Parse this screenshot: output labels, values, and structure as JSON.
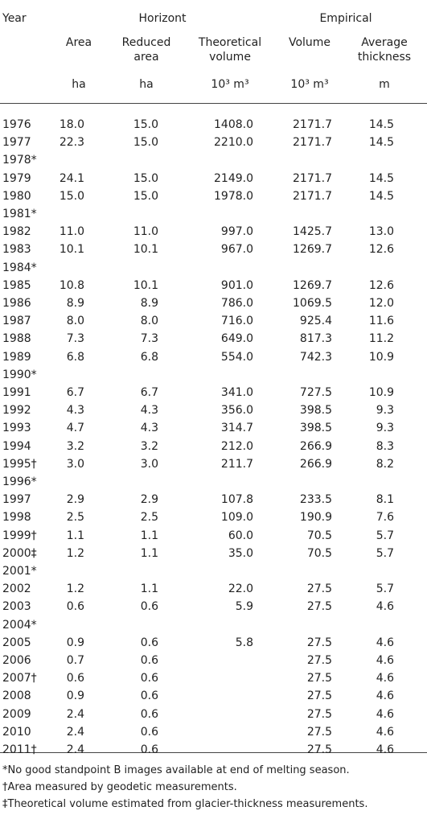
{
  "table": {
    "group_headers": [
      "Horizont",
      "Empirical"
    ],
    "headers": [
      "Year",
      "Area",
      "Reduced area",
      "Theoretical volume",
      "Volume",
      "Average thickness"
    ],
    "units": [
      "ha",
      "ha",
      "10³ m³",
      "10³ m³",
      "m"
    ],
    "rows": [
      [
        "1976",
        "18.0",
        "15.0",
        "1408.0",
        "2171.7",
        "14.5"
      ],
      [
        "1977",
        "22.3",
        "15.0",
        "2210.0",
        "2171.7",
        "14.5"
      ],
      [
        "1978*",
        null,
        null,
        null,
        null,
        null
      ],
      [
        "1979",
        "24.1",
        "15.0",
        "2149.0",
        "2171.7",
        "14.5"
      ],
      [
        "1980",
        "15.0",
        "15.0",
        "1978.0",
        "2171.7",
        "14.5"
      ],
      [
        "1981*",
        null,
        null,
        null,
        null,
        null
      ],
      [
        "1982",
        "11.0",
        "11.0",
        "997.0",
        "1425.7",
        "13.0"
      ],
      [
        "1983",
        "10.1",
        "10.1",
        "967.0",
        "1269.7",
        "12.6"
      ],
      [
        "1984*",
        null,
        null,
        null,
        null,
        null
      ],
      [
        "1985",
        "10.8",
        "10.1",
        "901.0",
        "1269.7",
        "12.6"
      ],
      [
        "1986",
        "8.9",
        "8.9",
        "786.0",
        "1069.5",
        "12.0"
      ],
      [
        "1987",
        "8.0",
        "8.0",
        "716.0",
        "925.4",
        "11.6"
      ],
      [
        "1988",
        "7.3",
        "7.3",
        "649.0",
        "817.3",
        "11.2"
      ],
      [
        "1989",
        "6.8",
        "6.8",
        "554.0",
        "742.3",
        "10.9"
      ],
      [
        "1990*",
        null,
        null,
        null,
        null,
        null
      ],
      [
        "1991",
        "6.7",
        "6.7",
        "341.0",
        "727.5",
        "10.9"
      ],
      [
        "1992",
        "4.3",
        "4.3",
        "356.0",
        "398.5",
        "9.3"
      ],
      [
        "1993",
        "4.7",
        "4.3",
        "314.7",
        "398.5",
        "9.3"
      ],
      [
        "1994",
        "3.2",
        "3.2",
        "212.0",
        "266.9",
        "8.3"
      ],
      [
        "1995†",
        "3.0",
        "3.0",
        "211.7",
        "266.9",
        "8.2"
      ],
      [
        "1996*",
        null,
        null,
        null,
        null,
        null
      ],
      [
        "1997",
        "2.9",
        "2.9",
        "107.8",
        "233.5",
        "8.1"
      ],
      [
        "1998",
        "2.5",
        "2.5",
        "109.0",
        "190.9",
        "7.6"
      ],
      [
        "1999†",
        "1.1",
        "1.1",
        "60.0",
        "70.5",
        "5.7"
      ],
      [
        "2000‡",
        "1.2",
        "1.1",
        "35.0",
        "70.5",
        "5.7"
      ],
      [
        "2001*",
        null,
        null,
        null,
        null,
        null
      ],
      [
        "2002",
        "1.2",
        "1.1",
        "22.0",
        "27.5",
        "5.7"
      ],
      [
        "2003",
        "0.6",
        "0.6",
        "5.9",
        "27.5",
        "4.6"
      ],
      [
        "2004*",
        null,
        null,
        null,
        null,
        null
      ],
      [
        "2005",
        "0.9",
        "0.6",
        "5.8",
        "27.5",
        "4.6"
      ],
      [
        "2006",
        "0.7",
        "0.6",
        null,
        "27.5",
        "4.6"
      ],
      [
        "2007†",
        "0.6",
        "0.6",
        null,
        "27.5",
        "4.6"
      ],
      [
        "2008",
        "0.9",
        "0.6",
        null,
        "27.5",
        "4.6"
      ],
      [
        "2009",
        "2.4",
        "0.6",
        null,
        "27.5",
        "4.6"
      ],
      [
        "2010",
        "2.4",
        "0.6",
        null,
        "27.5",
        "4.6"
      ],
      [
        "2011†",
        "2.4",
        "0.6",
        null,
        "27.5",
        "4.6"
      ]
    ],
    "footnotes": [
      "*No good standpoint B images available at end of melting season.",
      "†Area measured by geodetic measurements.",
      "‡Theoretical volume estimated from glacier-thickness measurements."
    ]
  }
}
